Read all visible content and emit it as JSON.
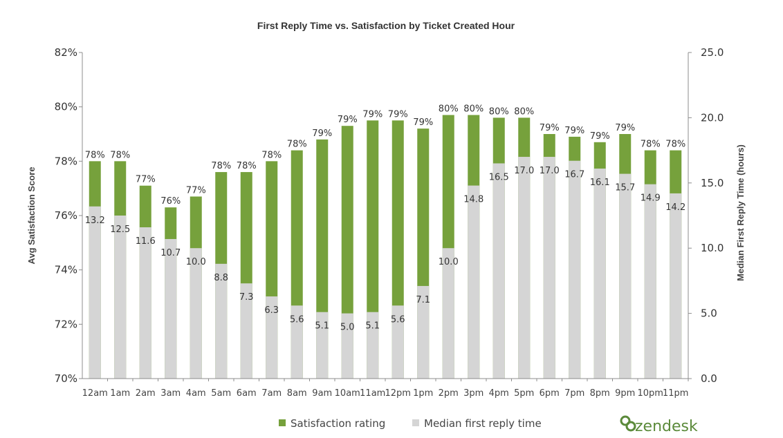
{
  "chart_data": {
    "type": "bar",
    "title": "First Reply Time vs. Satisfaction by Ticket Created Hour",
    "ylabel_left": "Avg Satisfaction Score",
    "ylabel_right": "Median First Reply Time (hours)",
    "ylim_left": [
      70,
      82
    ],
    "ylim_right": [
      0,
      25
    ],
    "yticks_left": [
      "70%",
      "72%",
      "74%",
      "76%",
      "78%",
      "80%",
      "82%"
    ],
    "yticks_right": [
      "0.0",
      "5.0",
      "10.0",
      "15.0",
      "20.0",
      "25.0"
    ],
    "categories": [
      "12am",
      "1am",
      "2am",
      "3am",
      "4am",
      "5am",
      "6am",
      "7am",
      "8am",
      "9am",
      "10am",
      "11am",
      "12pm",
      "1pm",
      "2pm",
      "3pm",
      "4pm",
      "5pm",
      "6pm",
      "7pm",
      "8pm",
      "9pm",
      "10pm",
      "11pm"
    ],
    "series": [
      {
        "name": "Satisfaction rating",
        "color": "#76a13c",
        "axis": "left",
        "values": [
          78.0,
          78.0,
          77.1,
          76.3,
          76.7,
          77.6,
          77.6,
          78.0,
          78.4,
          78.8,
          79.3,
          79.5,
          79.5,
          79.2,
          79.7,
          79.7,
          79.6,
          79.6,
          79.0,
          78.9,
          78.7,
          79.0,
          78.4,
          78.4
        ],
        "labels": [
          "78%",
          "78%",
          "77%",
          "76%",
          "77%",
          "78%",
          "78%",
          "78%",
          "78%",
          "79%",
          "79%",
          "79%",
          "79%",
          "79%",
          "80%",
          "80%",
          "80%",
          "80%",
          "79%",
          "79%",
          "79%",
          "79%",
          "78%",
          "78%"
        ]
      },
      {
        "name": "Median first reply time",
        "color": "#d5d5d5",
        "axis": "right",
        "values": [
          13.2,
          12.5,
          11.6,
          10.7,
          10.0,
          8.8,
          7.3,
          6.3,
          5.6,
          5.1,
          5.0,
          5.1,
          5.6,
          7.1,
          10.0,
          14.8,
          16.5,
          17.0,
          17.0,
          16.7,
          16.1,
          15.7,
          14.9,
          14.2
        ],
        "labels": [
          "13.2",
          "12.5",
          "11.6",
          "10.7",
          "10.0",
          "8.8",
          "7.3",
          "6.3",
          "5.6",
          "5.1",
          "5.0",
          "5.1",
          "5.6",
          "7.1",
          "10.0",
          "14.8",
          "16.5",
          "17.0",
          "17.0",
          "16.7",
          "16.1",
          "15.7",
          "14.9",
          "14.2"
        ]
      }
    ],
    "legend": "bottom-center",
    "grid": false
  },
  "brand": {
    "logo_text": "zendesk",
    "color": "#5b8a3a"
  }
}
